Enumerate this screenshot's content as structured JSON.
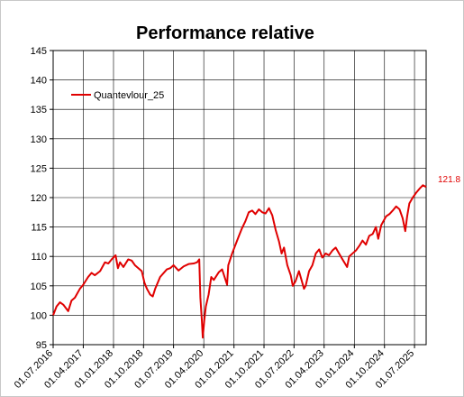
{
  "chart_data": {
    "type": "line",
    "title": "Performance relative",
    "xlabel": "",
    "ylabel": "",
    "ylim": [
      95,
      145
    ],
    "yticks": [
      95,
      100,
      105,
      110,
      115,
      120,
      125,
      130,
      135,
      140,
      145
    ],
    "xlim": [
      "2016-07-01",
      "2025-10-15"
    ],
    "xticks": [
      "01.07.2016",
      "01.04.2017",
      "01.01.2018",
      "01.10.2018",
      "01.07.2019",
      "01.04.2020",
      "01.01.2021",
      "01.10.2021",
      "01.07.2022",
      "01.04.2023",
      "01.01.2024",
      "01.10.2024",
      "01.07.2025"
    ],
    "grid": true,
    "legend_position": "top-left",
    "end_label": "121.8",
    "line_color": "#e00000",
    "series": [
      {
        "name": "Quantevlour_25",
        "points": [
          [
            "2016-07-01",
            100.0
          ],
          [
            "2016-08-01",
            101.5
          ],
          [
            "2016-09-01",
            102.2
          ],
          [
            "2016-10-01",
            101.8
          ],
          [
            "2016-11-15",
            100.7
          ],
          [
            "2016-12-15",
            102.5
          ],
          [
            "2017-01-15",
            103.0
          ],
          [
            "2017-03-01",
            104.5
          ],
          [
            "2017-04-01",
            105.2
          ],
          [
            "2017-05-15",
            106.5
          ],
          [
            "2017-06-15",
            107.2
          ],
          [
            "2017-07-15",
            106.8
          ],
          [
            "2017-09-01",
            107.5
          ],
          [
            "2017-10-15",
            109.0
          ],
          [
            "2017-11-15",
            108.8
          ],
          [
            "2017-12-15",
            109.5
          ],
          [
            "2018-01-20",
            110.2
          ],
          [
            "2018-02-10",
            108.0
          ],
          [
            "2018-03-01",
            109.0
          ],
          [
            "2018-04-01",
            108.2
          ],
          [
            "2018-05-15",
            109.5
          ],
          [
            "2018-06-15",
            109.3
          ],
          [
            "2018-07-15",
            108.5
          ],
          [
            "2018-08-15",
            108.0
          ],
          [
            "2018-09-15",
            107.5
          ],
          [
            "2018-10-10",
            105.5
          ],
          [
            "2018-11-01",
            104.5
          ],
          [
            "2018-12-01",
            103.5
          ],
          [
            "2018-12-24",
            103.2
          ],
          [
            "2019-01-15",
            104.5
          ],
          [
            "2019-03-01",
            106.5
          ],
          [
            "2019-05-01",
            107.8
          ],
          [
            "2019-06-01",
            108.0
          ],
          [
            "2019-07-01",
            108.5
          ],
          [
            "2019-08-15",
            107.6
          ],
          [
            "2019-10-01",
            108.3
          ],
          [
            "2019-11-15",
            108.7
          ],
          [
            "2019-12-31",
            108.8
          ],
          [
            "2020-01-31",
            109.0
          ],
          [
            "2020-02-20",
            109.5
          ],
          [
            "2020-03-01",
            103.0
          ],
          [
            "2020-03-15",
            99.0
          ],
          [
            "2020-03-23",
            96.2
          ],
          [
            "2020-04-05",
            99.0
          ],
          [
            "2020-04-20",
            101.5
          ],
          [
            "2020-05-15",
            103.5
          ],
          [
            "2020-06-08",
            106.5
          ],
          [
            "2020-07-01",
            106.0
          ],
          [
            "2020-08-15",
            107.3
          ],
          [
            "2020-09-15",
            107.8
          ],
          [
            "2020-10-30",
            105.2
          ],
          [
            "2020-11-10",
            108.5
          ],
          [
            "2020-12-15",
            110.5
          ],
          [
            "2021-01-15",
            112.0
          ],
          [
            "2021-02-15",
            113.5
          ],
          [
            "2021-03-15",
            114.8
          ],
          [
            "2021-04-15",
            116.0
          ],
          [
            "2021-05-15",
            117.5
          ],
          [
            "2021-06-15",
            117.8
          ],
          [
            "2021-07-15",
            117.2
          ],
          [
            "2021-08-15",
            118.0
          ],
          [
            "2021-09-15",
            117.5
          ],
          [
            "2021-10-15",
            117.3
          ],
          [
            "2021-11-15",
            118.2
          ],
          [
            "2021-12-15",
            117.0
          ],
          [
            "2022-01-15",
            114.5
          ],
          [
            "2022-02-15",
            112.5
          ],
          [
            "2022-03-10",
            110.5
          ],
          [
            "2022-04-01",
            111.5
          ],
          [
            "2022-05-01",
            108.5
          ],
          [
            "2022-06-01",
            106.8
          ],
          [
            "2022-06-20",
            105.0
          ],
          [
            "2022-07-15",
            105.8
          ],
          [
            "2022-08-15",
            107.5
          ],
          [
            "2022-09-30",
            104.5
          ],
          [
            "2022-10-15",
            105.0
          ],
          [
            "2022-11-15",
            107.5
          ],
          [
            "2022-12-15",
            108.5
          ],
          [
            "2023-01-15",
            110.5
          ],
          [
            "2023-02-15",
            111.2
          ],
          [
            "2023-03-15",
            109.8
          ],
          [
            "2023-04-15",
            110.5
          ],
          [
            "2023-05-15",
            110.2
          ],
          [
            "2023-06-15",
            111.0
          ],
          [
            "2023-07-15",
            111.5
          ],
          [
            "2023-08-15",
            110.5
          ],
          [
            "2023-09-15",
            109.5
          ],
          [
            "2023-10-27",
            108.2
          ],
          [
            "2023-11-15",
            110.0
          ],
          [
            "2023-12-15",
            110.5
          ],
          [
            "2024-01-15",
            111.0
          ],
          [
            "2024-02-15",
            111.8
          ],
          [
            "2024-03-15",
            112.7
          ],
          [
            "2024-04-15",
            112.0
          ],
          [
            "2024-05-15",
            113.5
          ],
          [
            "2024-06-15",
            113.8
          ],
          [
            "2024-07-15",
            115.0
          ],
          [
            "2024-08-05",
            113.0
          ],
          [
            "2024-09-01",
            115.3
          ],
          [
            "2024-10-15",
            116.8
          ],
          [
            "2024-11-15",
            117.2
          ],
          [
            "2024-12-15",
            117.8
          ],
          [
            "2025-01-15",
            118.5
          ],
          [
            "2025-02-15",
            118.0
          ],
          [
            "2025-03-15",
            116.5
          ],
          [
            "2025-04-08",
            114.3
          ],
          [
            "2025-04-25",
            116.8
          ],
          [
            "2025-05-15",
            119.0
          ],
          [
            "2025-06-15",
            120.0
          ],
          [
            "2025-07-15",
            120.8
          ],
          [
            "2025-08-15",
            121.5
          ],
          [
            "2025-09-15",
            122.1
          ],
          [
            "2025-10-15",
            121.8
          ]
        ]
      }
    ]
  }
}
